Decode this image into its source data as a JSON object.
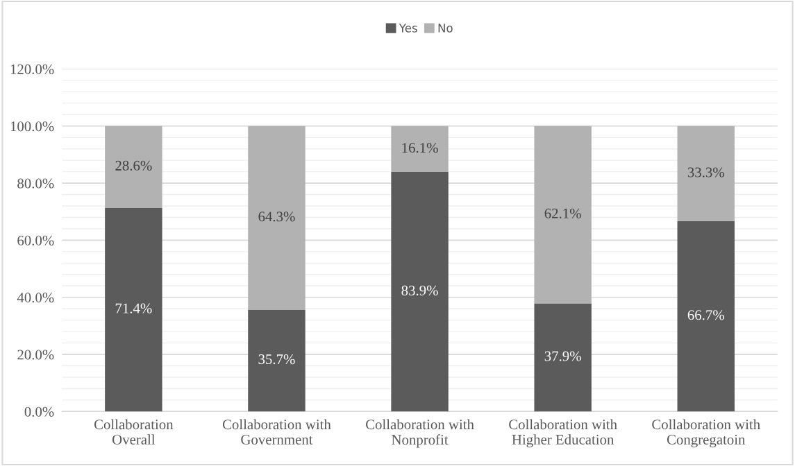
{
  "chart_data": {
    "type": "bar",
    "stacked": true,
    "categories": [
      "Collaboration\nOverall",
      "Collaboration with\nGovernment",
      "Collaboration with\nNonprofit",
      "Collaboration with\nHigher Education",
      "Collaboration with\nCongregatoin"
    ],
    "series": [
      {
        "name": "Yes",
        "color": "#5b5b5b",
        "values": [
          71.4,
          35.7,
          83.9,
          37.9,
          66.7
        ],
        "value_labels": [
          "71.4%",
          "35.7%",
          "83.9%",
          "37.9%",
          "66.7%"
        ]
      },
      {
        "name": "No",
        "color": "#b2b2b2",
        "values": [
          28.6,
          64.3,
          16.1,
          62.1,
          33.3
        ],
        "value_labels": [
          "28.6%",
          "64.3%",
          "16.1%",
          "62.1%",
          "33.3%"
        ]
      }
    ],
    "ylim": [
      0,
      120
    ],
    "yticks": [
      {
        "value": 0,
        "label": "0.0%"
      },
      {
        "value": 20,
        "label": "20.0%"
      },
      {
        "value": 40,
        "label": "40.0%"
      },
      {
        "value": 60,
        "label": "60.0%"
      },
      {
        "value": 80,
        "label": "80.0%"
      },
      {
        "value": 100,
        "label": "100.0%"
      },
      {
        "value": 120,
        "label": "120.0%"
      }
    ],
    "grid": "y",
    "legend": "top"
  }
}
